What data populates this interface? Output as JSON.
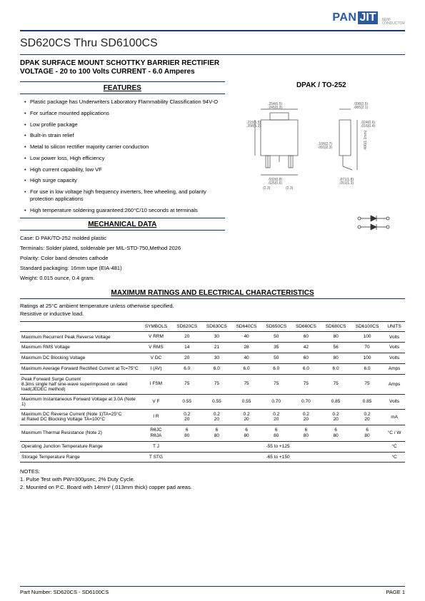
{
  "brand": {
    "pan": "PAN",
    "jit": "JIT",
    "sub1": "SEMI",
    "sub2": "CONDUCTOR"
  },
  "title": "SD620CS Thru SD6100CS",
  "subtitle1": "DPAK SURFACE MOUNT SCHOTTKY BARRIER RECTIFIER",
  "subtitle2": "VOLTAGE - 20 to 100 Volts  CURRENT - 6.0 Amperes",
  "headings": {
    "features": "FEATURES",
    "package": "DPAK / TO-252",
    "mechanical": "MECHANICAL DATA",
    "maxratings": "MAXIMUM RATINGS AND ELECTRICAL CHARACTERISTICS"
  },
  "features": [
    "Plastic package has Underwriters Laboratory Flammability Classification 94V-O",
    "For surface mounted applications",
    "Low profile package",
    "Built-in strain relief",
    "Metal to silicon rectifier majority carrier conduction",
    "Low power loss, High efficiency",
    "High current capability, low VF",
    "High surge capacity",
    "For use in low voltage high frequency inverters, free wheeling, and polarity protection applications",
    "High temperature soldering guaranteed:260°C/10 seconds at terminals"
  ],
  "mechanical": [
    "Case: D PAK/TO-252 molded plastic",
    "Terminals: Solder plated, solderable per MIL-STD-750,Method 2026",
    "Polarity: Color band denotes cathode",
    "Standard packaging: 16mm tape (EIA-481)",
    "Weight: 0.015 ounce, 0.4 gram."
  ],
  "ratings_intro1": "Ratings at 25°C ambient temperature unless otherwise specified.",
  "ratings_intro2": "Resistive or inductive load.",
  "table": {
    "headers": [
      "SYMBOLS",
      "SD620CS",
      "SD630CS",
      "SD640CS",
      "SD650CS",
      "SD660CS",
      "SD680CS",
      "SD6100CS",
      "UNITS"
    ],
    "rows": [
      {
        "param": "Maximum Recurrent Peak Reverse Voltage",
        "sym": "V RRM",
        "v": [
          "20",
          "30",
          "40",
          "50",
          "60",
          "80",
          "100"
        ],
        "u": "Volts"
      },
      {
        "param": "Maximum RMS Voltage",
        "sym": "V RMS",
        "v": [
          "14",
          "21",
          "28",
          "35",
          "42",
          "56",
          "70"
        ],
        "u": "Volts"
      },
      {
        "param": "Maximum DC Blocking Voltage",
        "sym": "V DC",
        "v": [
          "20",
          "30",
          "40",
          "50",
          "60",
          "80",
          "100"
        ],
        "u": "Volts"
      },
      {
        "param": "Maximum Average Forward Rectified Current at Tc=75°C",
        "sym": "I (AV)",
        "v": [
          "6.0",
          "6.0",
          "6.0",
          "6.0",
          "6.0",
          "6.0",
          "6.0"
        ],
        "u": "Amps"
      },
      {
        "param": "Peak Forward Surge Current\n8.3ms single half sine-wave superimposed on rated load(JEDEC method)",
        "sym": "I FSM",
        "v": [
          "75",
          "75",
          "75",
          "75",
          "75",
          "75",
          "75"
        ],
        "u": "Amps"
      },
      {
        "param": "Maximum Instantaneous Forward Voltage at 3.0A (Note 1)",
        "sym": "V F",
        "v": [
          "0.55",
          "0.55",
          "0.55",
          "0.70",
          "0.70",
          "0.85",
          "0.85"
        ],
        "u": "Volts"
      },
      {
        "param": "Maximum DC Reverse Current (Note 1)TA=25°C\nat Rated DC Blocking Voltage        TA=100°C",
        "sym": "I R",
        "v": [
          "0.2\n20",
          "0.2\n20",
          "0.2\n20",
          "0.2\n20",
          "0.2\n20",
          "0.2\n20",
          "0.2\n20"
        ],
        "u": "mA"
      },
      {
        "param": "Maximum Thermal Resistance (Note 2)",
        "sym": "RθJC\nRθJA",
        "v": [
          "6\n80",
          "6\n80",
          "6\n80",
          "6\n80",
          "6\n80",
          "6\n80",
          "6\n80"
        ],
        "u": "°C / W"
      },
      {
        "param": "Operating Junction Temperature Range",
        "sym": "T J",
        "span": "-55 to +125",
        "u": "°C"
      },
      {
        "param": "Storage Temperature Range",
        "sym": "T STG",
        "span": "-65 to +150",
        "u": "°C"
      }
    ]
  },
  "notes": {
    "head": "NOTES:",
    "n1": "1. Pulse Test with PW=300μsec, 2% Duty Cycle.",
    "n2": "2. Mounted on P.C. Board with 14mm² (.013mm thick) copper pad areas."
  },
  "footer": {
    "left": "Part Number: SD620CS - SD6100CS",
    "right": "PAGE  1"
  },
  "diagram": {
    "body_w": 50,
    "body_h": 55,
    "tab_w": 30,
    "tab_h": 10,
    "lead_w": 8,
    "lead_h": 18,
    "labels": {
      "w1": ".254(6.5)\n.245(6.3)",
      "w2": ".098(2.5)\n.085(2.1)",
      "h1": ".215(5.5)\n.208(5.3)",
      "h2": ".024(0.6)\n.016(0.4)",
      "t1": ".106(2.7)\n.091(2.3)",
      "t2": ".406(1.1mm)",
      "b1": ".032(0.8)\n.025(0.6)",
      "b2": ".071(1.8)\n.051(1.3)",
      "p1": "(2.3)",
      "p2": "(2.3)"
    },
    "colors": {
      "outline": "#333",
      "dim": "#555"
    }
  }
}
